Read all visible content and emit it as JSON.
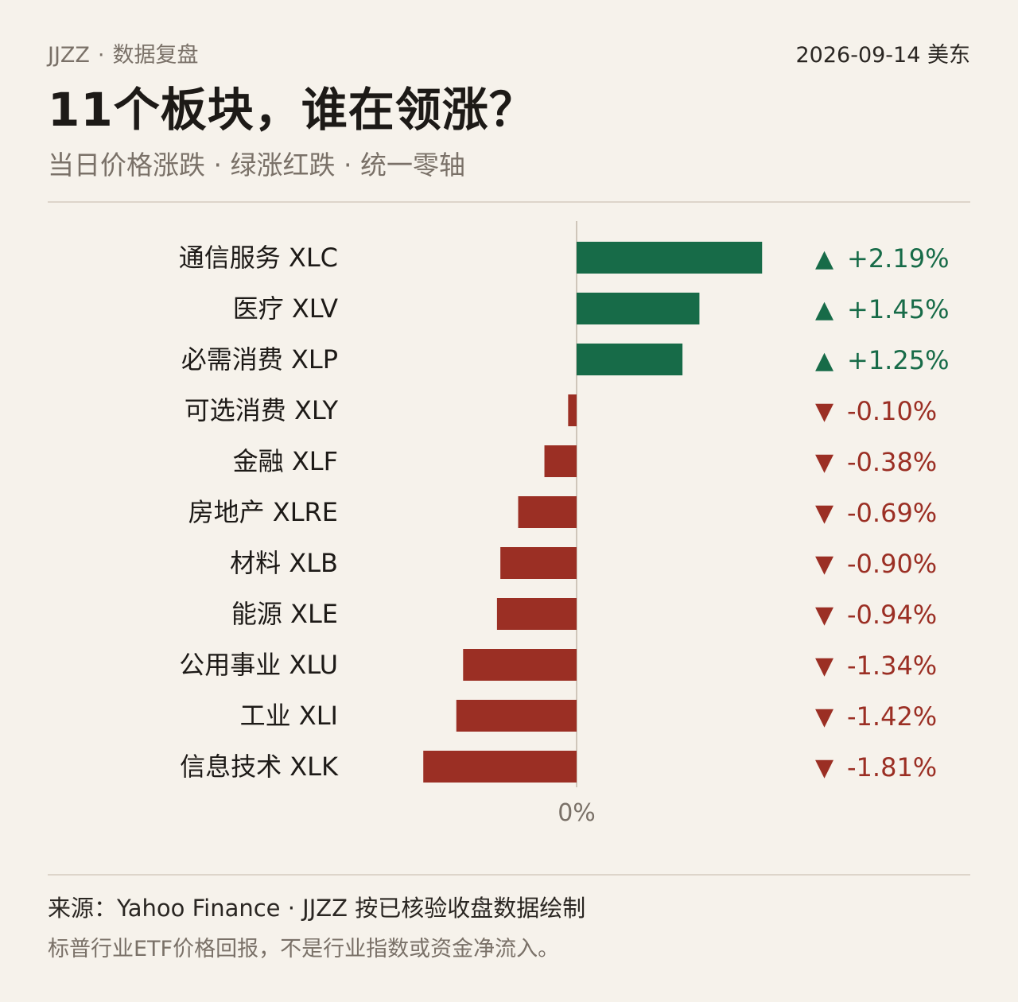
{
  "header": {
    "brand": "JJZZ",
    "section": "数据复盘",
    "date": "2026-09-14 美东",
    "title": "11个板块，谁在领涨？",
    "subtitle": "当日价格涨跌 · 绿涨红跌 · 统一零轴"
  },
  "colors": {
    "up": "#176b48",
    "down": "#9b2f24",
    "axis": "#cfc6ba",
    "label": "#1d1a17",
    "muted": "#7a7168",
    "background": "#f6f2eb"
  },
  "chart_data": {
    "type": "bar",
    "orientation": "horizontal",
    "categories": [
      "通信服务 XLC",
      "医疗 XLV",
      "必需消费 XLP",
      "可选消费 XLY",
      "金融 XLF",
      "房地产 XLRE",
      "材料 XLB",
      "能源 XLE",
      "公用事业 XLU",
      "工业 XLI",
      "信息技术 XLK"
    ],
    "values": [
      2.19,
      1.45,
      1.25,
      -0.1,
      -0.38,
      -0.69,
      -0.9,
      -0.94,
      -1.34,
      -1.42,
      -1.81
    ],
    "value_labels": [
      "+2.19%",
      "+1.45%",
      "+1.25%",
      "-0.10%",
      "-0.38%",
      "-0.69%",
      "-0.90%",
      "-0.94%",
      "-1.34%",
      "-1.42%",
      "-1.81%"
    ],
    "zero_label": "0%",
    "up_marker": "▲",
    "down_marker": "▼",
    "xlim": [
      -1.81,
      2.19
    ]
  },
  "footer": {
    "source": "来源：Yahoo Finance · JJZZ 按已核验收盘数据绘制",
    "note": "标普行业ETF价格回报，不是行业指数或资金净流入。"
  }
}
